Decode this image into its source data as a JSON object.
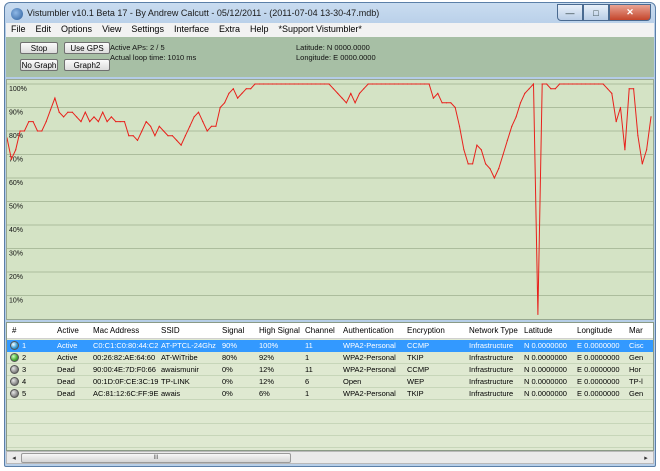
{
  "window": {
    "title": "Vistumbler v10.1 Beta 17 - By Andrew Calcutt - 05/12/2011 - (2011-07-04 13-30-47.mdb)",
    "controls": {
      "minimize": "—",
      "maximize": "□",
      "close": "✕"
    }
  },
  "menu": [
    "File",
    "Edit",
    "Options",
    "View",
    "Settings",
    "Interface",
    "Extra",
    "Help",
    "*Support Vistumbler*"
  ],
  "toolbar": {
    "stop": "Stop",
    "use_gps": "Use GPS",
    "no_graph": "No Graph",
    "graph2": "Graph2",
    "active_aps": "Active APs: 2 / 5",
    "loop_time": "Actual loop time: 1010 ms",
    "latitude": "Latitude: N 0000.0000",
    "longitude": "Longitude: E 0000.0000"
  },
  "chart_data": {
    "type": "line",
    "y_ticks": [
      "100%",
      "90%",
      "80%",
      "70%",
      "60%",
      "50%",
      "40%",
      "30%",
      "20%",
      "10%"
    ],
    "ylim": [
      0,
      100
    ],
    "series": [
      {
        "color": "#e8211c",
        "values": [
          77,
          68,
          72,
          80,
          80,
          84,
          84,
          80,
          80,
          84,
          89,
          94,
          88,
          86,
          88,
          88,
          86,
          84,
          88,
          84,
          86,
          84,
          88,
          84,
          86,
          84,
          84,
          84,
          78,
          78,
          76,
          80,
          84,
          82,
          78,
          82,
          80,
          78,
          78,
          76,
          74,
          78,
          82,
          86,
          88,
          84,
          80,
          82,
          82,
          90,
          92,
          96,
          98,
          94,
          96,
          98,
          98,
          100,
          100,
          100,
          100,
          100,
          100,
          100,
          100,
          100,
          100,
          100,
          100,
          100,
          100,
          100,
          100,
          100,
          100,
          98,
          96,
          94,
          92,
          96,
          92,
          96,
          98,
          100,
          100,
          100,
          100,
          100,
          100,
          100,
          100,
          100,
          100,
          100,
          100,
          100,
          100,
          100,
          94,
          96,
          92,
          92,
          92,
          90,
          82,
          72,
          66,
          66,
          74,
          72,
          66,
          64,
          60,
          64,
          70,
          76,
          82,
          86,
          92,
          96,
          98,
          100,
          2,
          100,
          100,
          98,
          98,
          100,
          100,
          100,
          100,
          100,
          100,
          100,
          100,
          100,
          100,
          100,
          98,
          96,
          84,
          90,
          72,
          98,
          98,
          78,
          66,
          72,
          86
        ]
      }
    ]
  },
  "table": {
    "columns": [
      "#",
      "Active",
      "Mac Address",
      "SSID",
      "Signal",
      "High Signal",
      "Channel",
      "Authentication",
      "Encryption",
      "Network Type",
      "Latitude",
      "Longitude",
      "Mar"
    ],
    "rows": [
      {
        "num": "1",
        "active": "Active",
        "mac": "C0:C1:C0:80:44:C2",
        "ssid": "AT-PTCL-24Ghz",
        "signal": "90%",
        "high": "100%",
        "channel": "11",
        "auth": "WPA2-Personal",
        "enc": "CCMP",
        "type": "Infrastructure",
        "lat": "N 0.0000000",
        "lon": "E 0.0000000",
        "man": "Cisc",
        "status": "active",
        "selected": true
      },
      {
        "num": "2",
        "active": "Active",
        "mac": "00:26:82:AE:64:60",
        "ssid": "AT-WiTribe",
        "signal": "80%",
        "high": "92%",
        "channel": "1",
        "auth": "WPA2-Personal",
        "enc": "TKIP",
        "type": "Infrastructure",
        "lat": "N 0.0000000",
        "lon": "E 0.0000000",
        "man": "Gen",
        "status": "active2",
        "selected": false
      },
      {
        "num": "3",
        "active": "Dead",
        "mac": "90:00:4E:7D:F0:66",
        "ssid": "awaismunir",
        "signal": "0%",
        "high": "12%",
        "channel": "11",
        "auth": "WPA2-Personal",
        "enc": "CCMP",
        "type": "Infrastructure",
        "lat": "N 0.0000000",
        "lon": "E 0.0000000",
        "man": "Hor",
        "status": "dead",
        "selected": false
      },
      {
        "num": "4",
        "active": "Dead",
        "mac": "00:1D:0F:CE:3C:19",
        "ssid": "TP-LINK",
        "signal": "0%",
        "high": "12%",
        "channel": "6",
        "auth": "Open",
        "enc": "WEP",
        "type": "Infrastructure",
        "lat": "N 0.0000000",
        "lon": "E 0.0000000",
        "man": "TP-l",
        "status": "dead",
        "selected": false
      },
      {
        "num": "5",
        "active": "Dead",
        "mac": "AC:81:12:6C:FF:9E",
        "ssid": "awais",
        "signal": "0%",
        "high": "6%",
        "channel": "1",
        "auth": "WPA2-Personal",
        "enc": "TKIP",
        "type": "Infrastructure",
        "lat": "N 0.0000000",
        "lon": "E 0.0000000",
        "man": "Gen",
        "status": "dead",
        "selected": false
      }
    ]
  },
  "scrollbar": {
    "left": "◂",
    "right": "▸",
    "grip": "III"
  }
}
